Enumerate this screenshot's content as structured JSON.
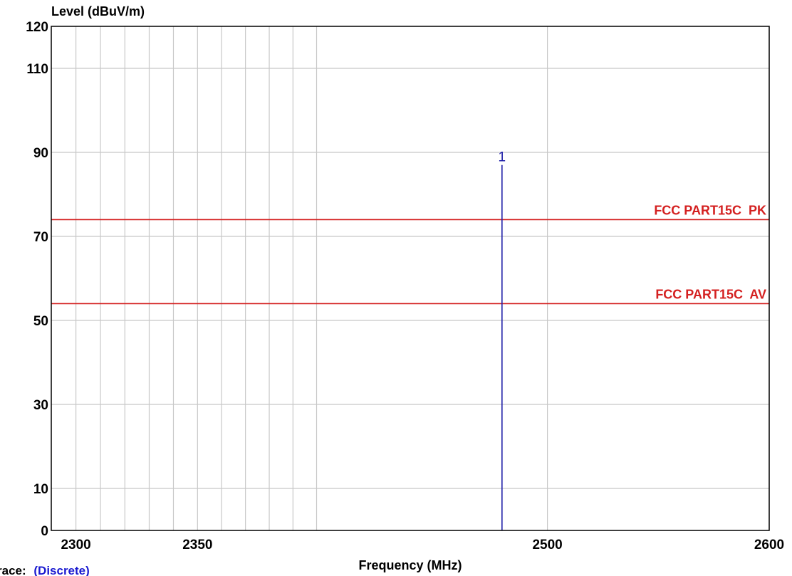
{
  "colors": {
    "grid": "#c8c8c8",
    "frame": "#000000",
    "limit": "#d42020",
    "marker": "#2020a8",
    "trace_value": "#1a1ad0"
  },
  "chart_data": {
    "type": "line",
    "title": "",
    "ylabel": "Level (dBuV/m)",
    "xlabel": "Frequency (MHz)",
    "x_scale": "log",
    "xlim": [
      2290,
      2600
    ],
    "ylim": [
      0,
      120
    ],
    "grid": true,
    "legend": "none",
    "x_ticks": [
      2300,
      2350,
      2500,
      2600
    ],
    "x_gridlines": [
      2300,
      2310,
      2320,
      2330,
      2340,
      2350,
      2360,
      2370,
      2380,
      2390,
      2400,
      2500,
      2600
    ],
    "y_ticks": [
      0,
      10,
      30,
      50,
      70,
      90,
      110,
      120
    ],
    "y_gridlines": [
      10,
      30,
      50,
      70,
      90,
      110
    ],
    "limit_lines": [
      {
        "name": "FCC PART15C  PK",
        "value": 74
      },
      {
        "name": "FCC PART15C  AV",
        "value": 54
      }
    ],
    "markers": [
      {
        "label": "1",
        "x": 2480,
        "y": 87
      }
    ]
  },
  "trace": {
    "prefix": "race:",
    "value": "(Discrete)"
  }
}
